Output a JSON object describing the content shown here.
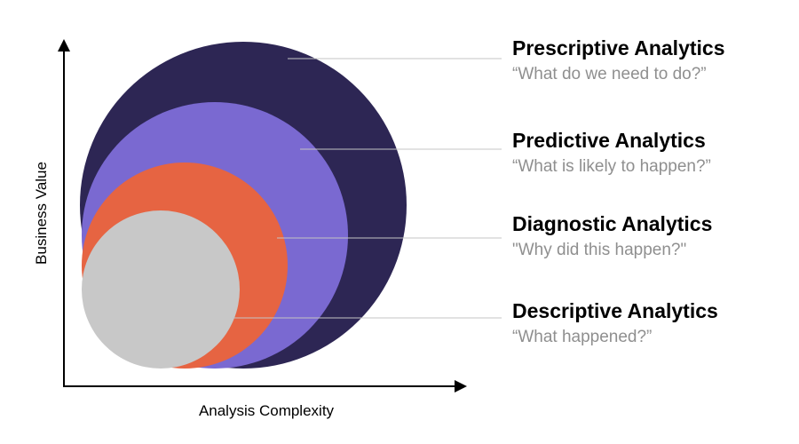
{
  "axes": {
    "x_label": "Analysis Complexity",
    "y_label": "Business Value"
  },
  "levels": [
    {
      "key": "prescriptive",
      "title": "Prescriptive Analytics",
      "question": "“What do we need to do?”",
      "color": "#2d2654"
    },
    {
      "key": "predictive",
      "title": "Predictive Analytics",
      "question": "“What is likely to happen?”",
      "color": "#7a69d1"
    },
    {
      "key": "diagnostic",
      "title": "Diagnostic Analytics",
      "question": "\"Why did this happen?\"",
      "color": "#e66442"
    },
    {
      "key": "descriptive",
      "title": "Descriptive Analytics",
      "question": "“What happened?”",
      "color": "#c8c8c8"
    }
  ],
  "colors": {
    "axis": "#000000",
    "leader_line": "#c4c4c4",
    "subtitle_text": "#8f8f8f"
  }
}
